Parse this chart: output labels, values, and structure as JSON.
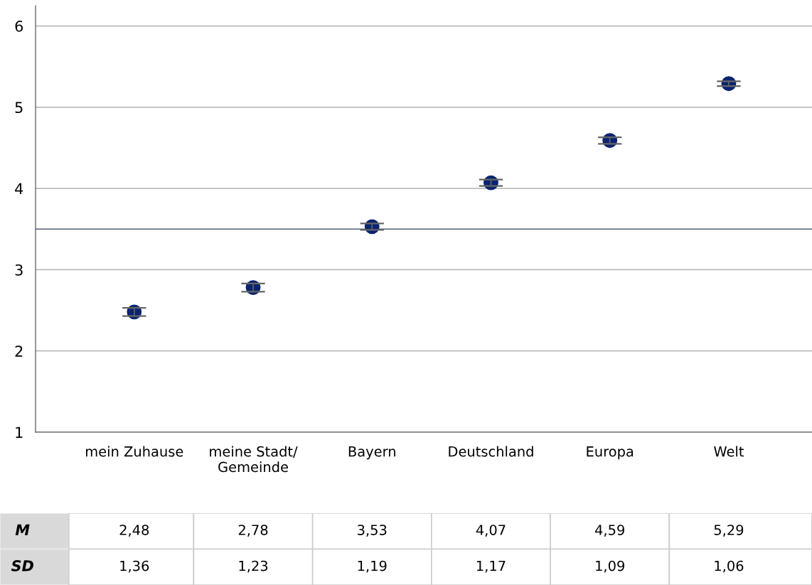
{
  "chart_data": {
    "type": "scatter",
    "categories": [
      "mein Zuhause",
      "meine Stadt/\nGemeinde",
      "Bayern",
      "Deutschland",
      "Europa",
      "Welt"
    ],
    "series": [
      {
        "name": "M",
        "color": "#0a2470",
        "values": [
          2.48,
          2.78,
          3.53,
          4.07,
          4.59,
          5.29
        ],
        "errors": [
          0.05,
          0.05,
          0.04,
          0.04,
          0.04,
          0.03
        ],
        "value_labels": [
          "2,48",
          "2,78",
          "3,53",
          "4,07",
          "4,59",
          "5,29"
        ]
      }
    ],
    "annotations": [
      "SD",
      "1,36",
      "1,23",
      "1,19",
      "1,17",
      "1,09",
      "1,06"
    ],
    "ylim": [
      1,
      6.25
    ],
    "yticks": [
      1,
      2,
      3,
      4,
      5,
      6
    ],
    "grid": "y",
    "marker": "circle",
    "ref_lines": [
      {
        "axis": "y",
        "value": 3.5,
        "color": "#50607a"
      }
    ]
  }
}
